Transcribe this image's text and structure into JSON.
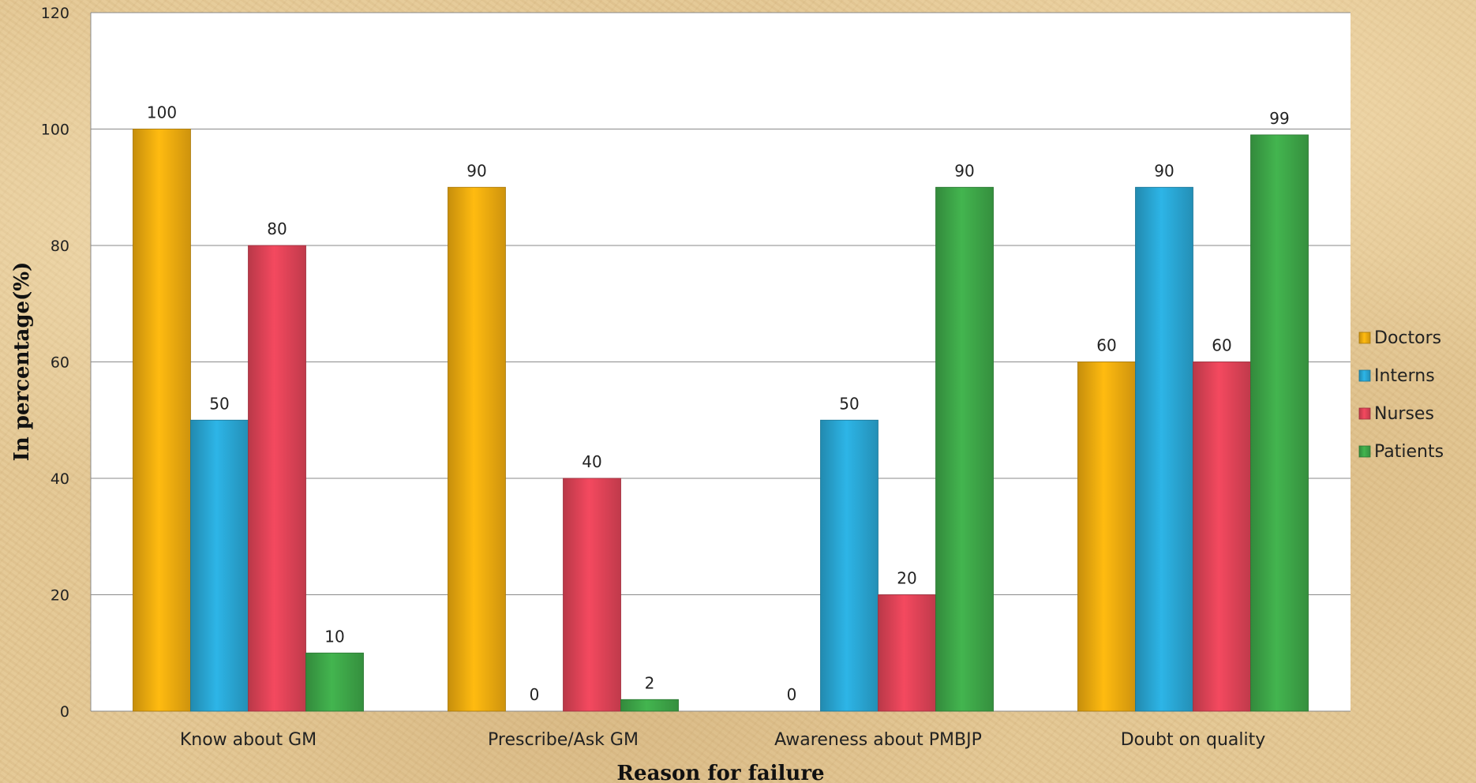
{
  "chart_data": {
    "type": "bar",
    "title": "",
    "xlabel": "Reason for failure",
    "ylabel": "In percentage(%)",
    "ylim": [
      0,
      120
    ],
    "yticks": [
      0,
      20,
      40,
      60,
      80,
      100,
      120
    ],
    "grid": true,
    "legend_position": "right",
    "categories": [
      "Know about GM",
      "Prescribe/Ask GM",
      "Awareness about PMBJP",
      "Doubt on quality"
    ],
    "series": [
      {
        "name": "Doctors",
        "color": "#f2ad0f",
        "values": [
          100,
          90,
          null,
          60
        ],
        "labels": [
          "100",
          "90",
          "",
          "60"
        ]
      },
      {
        "name": "Interns",
        "color": "#2aa8d6",
        "values": [
          50,
          0,
          50,
          90
        ],
        "labels": [
          "50",
          "0",
          "50",
          "90"
        ]
      },
      {
        "name": "Nurses",
        "color": "#e24458",
        "values": [
          80,
          40,
          20,
          60
        ],
        "labels": [
          "80",
          "40",
          "20",
          "60"
        ]
      },
      {
        "name": "Patients",
        "color": "#3ea849",
        "values": [
          10,
          2,
          90,
          99
        ],
        "labels": [
          "10",
          "2",
          "90",
          "99"
        ]
      }
    ],
    "annotations": [
      {
        "category_index": 2,
        "text": "0"
      }
    ]
  }
}
